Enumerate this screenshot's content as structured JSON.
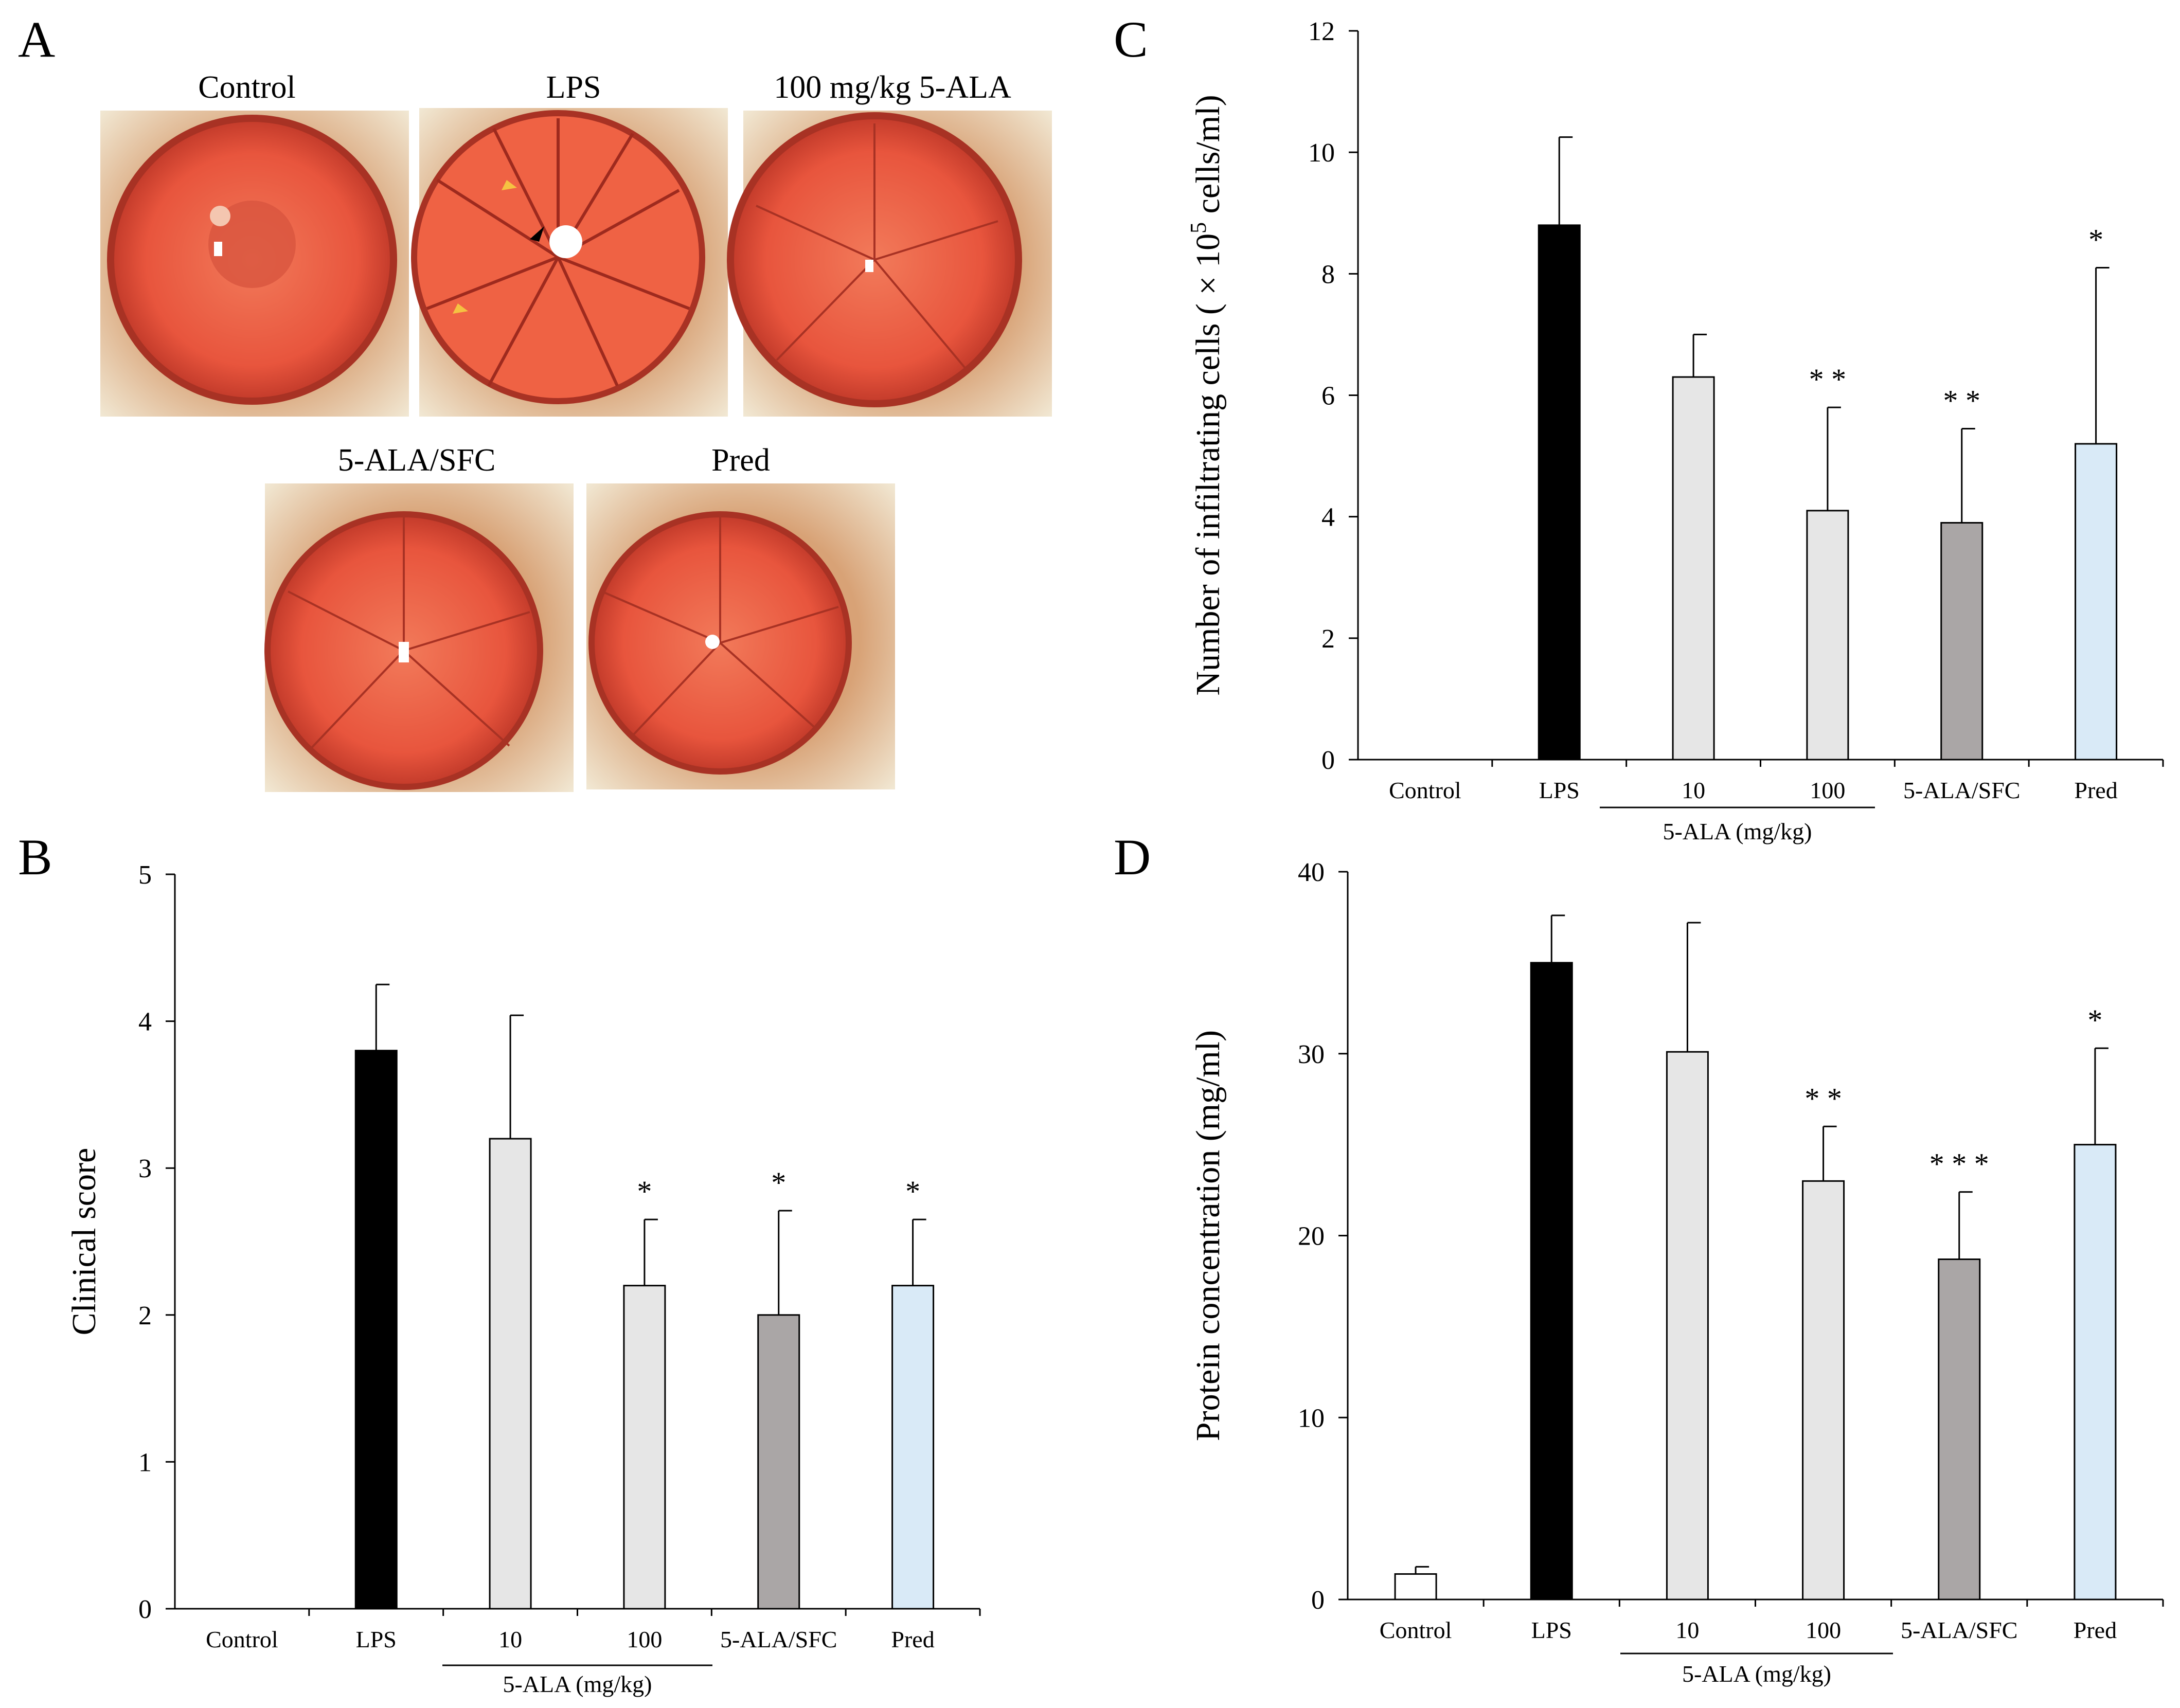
{
  "panels": {
    "a": {
      "letter": "A"
    },
    "b": {
      "letter": "B"
    },
    "c": {
      "letter": "C"
    },
    "d": {
      "letter": "D"
    }
  },
  "photos": [
    {
      "label": "Control"
    },
    {
      "label": "LPS"
    },
    {
      "label": "100 mg/kg 5-ALA"
    },
    {
      "label": "5-ALA/SFC"
    },
    {
      "label": "Pred"
    }
  ],
  "group_label": "5-ALA (mg/kg)",
  "colors": {
    "control": "#ffffff",
    "lps": "#000000",
    "ala": "#e6e6e6",
    "sfc": "#aaa6a6",
    "pred": "#d9eaf7",
    "iris": "#e8553d",
    "fur": "#e9dcc4"
  },
  "chart_data": [
    {
      "id": "B",
      "type": "bar",
      "categories": [
        "Control",
        "LPS",
        "10",
        "100",
        "5-ALA/SFC",
        "Pred"
      ],
      "values": [
        0,
        3.8,
        3.2,
        2.2,
        2.0,
        2.2
      ],
      "errors": [
        0,
        0.45,
        0.84,
        0.45,
        0.71,
        0.45
      ],
      "significance": [
        "",
        "",
        "",
        "*",
        "*",
        "*"
      ],
      "ylabel": "Clinical score",
      "ylim": [
        0,
        5
      ],
      "yticks": [
        "0",
        "1",
        "2",
        "3",
        "4",
        "5"
      ]
    },
    {
      "id": "C",
      "type": "bar",
      "categories": [
        "Control",
        "LPS",
        "10",
        "100",
        "5-ALA/SFC",
        "Pred"
      ],
      "values": [
        0,
        8.8,
        6.3,
        4.1,
        3.9,
        5.2
      ],
      "errors": [
        0,
        1.45,
        0.7,
        1.7,
        1.55,
        2.9
      ],
      "significance": [
        "",
        "",
        "",
        "* *",
        "* *",
        "*"
      ],
      "ylabel": "Number of infiltrating cells ( × 10",
      "ylabel_sup": "5",
      "ylabel_unit": " cells/ml)",
      "ylim": [
        0,
        12
      ],
      "yticks": [
        "0",
        "2",
        "4",
        "6",
        "8",
        "10",
        "12"
      ]
    },
    {
      "id": "D",
      "type": "bar",
      "categories": [
        "Control",
        "LPS",
        "10",
        "100",
        "5-ALA/SFC",
        "Pred"
      ],
      "values": [
        1.4,
        35,
        30.1,
        23,
        18.7,
        25
      ],
      "errors": [
        0.4,
        2.6,
        7.1,
        3,
        3.7,
        5.3
      ],
      "significance": [
        "",
        "",
        "",
        "* *",
        "* * *",
        "*"
      ],
      "ylabel": "Protein concentration (mg/ml)",
      "ylim": [
        0,
        40
      ],
      "yticks": [
        "0",
        "10",
        "20",
        "30",
        "40"
      ]
    }
  ]
}
